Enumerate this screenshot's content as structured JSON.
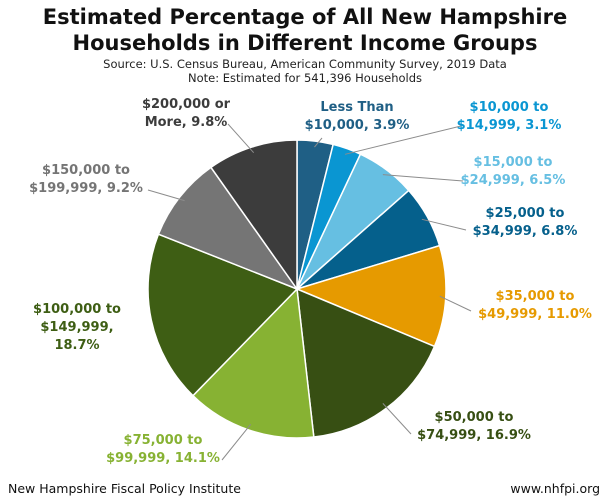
{
  "header": {
    "title_line1": "Estimated Percentage of All New Hampshire",
    "title_line2": "Households in Different Income Groups",
    "source": "Source: U.S. Census Bureau, American Community Survey, 2019 Data",
    "note": "Note: Estimated for 541,396 Households"
  },
  "footer": {
    "left": "New Hampshire Fiscal Policy Institute",
    "right": "www.nhfpi.org"
  },
  "chart_data": {
    "type": "pie",
    "slices": [
      {
        "label_lines": [
          "Less Than",
          "$10,000, 3.9%"
        ],
        "value": 3.9,
        "color": "#1f5f85",
        "label_color": "#1f5f85"
      },
      {
        "label_lines": [
          "$10,000 to",
          "$14,999, 3.1%"
        ],
        "value": 3.1,
        "color": "#0a96d2",
        "label_color": "#0a96d2"
      },
      {
        "label_lines": [
          "$15,000 to",
          "$24,999, 6.5%"
        ],
        "value": 6.5,
        "color": "#66bfe2",
        "label_color": "#66bfe2"
      },
      {
        "label_lines": [
          "$25,000 to",
          "$34,999, 6.8%"
        ],
        "value": 6.8,
        "color": "#05608c",
        "label_color": "#05608c"
      },
      {
        "label_lines": [
          "$35,000 to",
          "$49,999, 11.0%"
        ],
        "value": 11.0,
        "color": "#e69a00",
        "label_color": "#e69a00"
      },
      {
        "label_lines": [
          "$50,000 to",
          "$74,999, 16.9%"
        ],
        "value": 16.9,
        "color": "#374f13",
        "label_color": "#374f13"
      },
      {
        "label_lines": [
          "$75,000 to",
          "$99,999, 14.1%"
        ],
        "value": 14.1,
        "color": "#87b233",
        "label_color": "#87b233"
      },
      {
        "label_lines": [
          "$100,000 to",
          "$149,999,",
          "18.7%"
        ],
        "value": 18.7,
        "color": "#3e5e14",
        "label_color": "#3e5e14"
      },
      {
        "label_lines": [
          "$150,000 to",
          "$199,999, 9.2%"
        ],
        "value": 9.2,
        "color": "#757575",
        "label_color": "#757575"
      },
      {
        "label_lines": [
          "$200,000 or",
          "More, 9.8%"
        ],
        "value": 9.8,
        "color": "#3c3c3c",
        "label_color": "#3c3c3c"
      }
    ]
  }
}
